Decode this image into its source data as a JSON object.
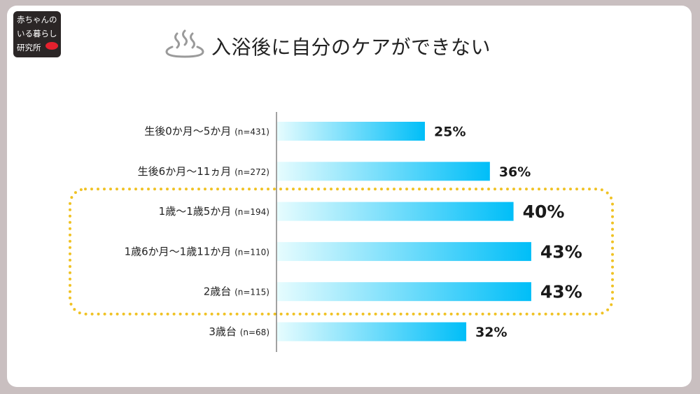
{
  "logo": {
    "lines": [
      "赤ちゃんの",
      "いる暮らし",
      "研究所"
    ]
  },
  "title_icon": "hot-spring-icon",
  "colors": {
    "bar_start": "#e6fcfe",
    "bar_end": "#00bef8",
    "highlight_dots": "#f0c224",
    "axis": "#444444",
    "background": "#c9bfc0"
  },
  "chart_data": {
    "type": "bar",
    "orientation": "horizontal",
    "title": "入浴後に自分のケアができない",
    "categories": [
      "生後0か月〜5か月",
      "生後6か月〜11ヵ月",
      "1歳〜1歳5か月",
      "1歳6か月〜1歳11か月",
      "2歳台",
      "3歳台"
    ],
    "sample_sizes": [
      "(n=431)",
      "(n=272)",
      "(n=194)",
      "(n=110)",
      "(n=115)",
      "(n=68)"
    ],
    "values": [
      25,
      36,
      40,
      43,
      43,
      32
    ],
    "value_labels": [
      "25%",
      "36%",
      "40%",
      "43%",
      "43%",
      "32%"
    ],
    "unit": "%",
    "xlim": [
      0,
      50
    ],
    "highlighted": [
      "1歳〜1歳5か月",
      "1歳6か月〜1歳11か月",
      "2歳台"
    ],
    "grid": false,
    "legend": "none"
  }
}
